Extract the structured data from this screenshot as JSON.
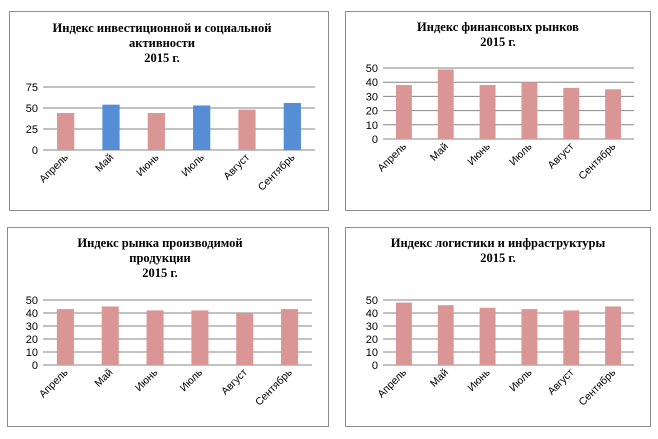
{
  "chart_data": [
    {
      "type": "bar",
      "title": [
        "Индекс инвестиционной и социальной",
        "активности",
        "2015 г."
      ],
      "categories": [
        "Апрель",
        "Май",
        "Июнь",
        "Июль",
        "Август",
        "Сентябрь"
      ],
      "values": [
        44,
        54,
        44,
        53,
        48,
        56
      ],
      "bar_colors": [
        "#d99694",
        "#558ed5",
        "#d99694",
        "#558ed5",
        "#d99694",
        "#558ed5"
      ],
      "yticks": [
        0,
        25,
        50,
        75
      ],
      "ylim": [
        0,
        75
      ],
      "grid": true,
      "legend": "none"
    },
    {
      "type": "bar",
      "title": [
        "Индекс финансовых рынков",
        "2015 г."
      ],
      "categories": [
        "Апрель",
        "Май",
        "Июнь",
        "Июль",
        "Август",
        "Сентябрь"
      ],
      "values": [
        38,
        49,
        38,
        40,
        36,
        35
      ],
      "bar_colors": [
        "#d99694",
        "#d99694",
        "#d99694",
        "#d99694",
        "#d99694",
        "#d99694"
      ],
      "yticks": [
        0,
        10,
        20,
        30,
        40,
        50
      ],
      "ylim": [
        0,
        50
      ],
      "grid": true,
      "legend": "none"
    },
    {
      "type": "bar",
      "title": [
        "Индекс рынка производимой",
        "продукции",
        "2015 г."
      ],
      "categories": [
        "Апрель",
        "Май",
        "Июнь",
        "Июль",
        "Август",
        "Сентябрь"
      ],
      "values": [
        43,
        45,
        42,
        42,
        40,
        43
      ],
      "bar_colors": [
        "#d99694",
        "#d99694",
        "#d99694",
        "#d99694",
        "#d99694",
        "#d99694"
      ],
      "yticks": [
        0,
        10,
        20,
        30,
        40,
        50
      ],
      "ylim": [
        0,
        50
      ],
      "grid": true,
      "legend": "none"
    },
    {
      "type": "bar",
      "title": [
        "Индекс логистики и инфраструктуры",
        "2015 г."
      ],
      "categories": [
        "Апрель",
        "Май",
        "Июнь",
        "Июль",
        "Август",
        "Сентябрь"
      ],
      "values": [
        48,
        46,
        44,
        43,
        42,
        45
      ],
      "bar_colors": [
        "#d99694",
        "#d99694",
        "#d99694",
        "#d99694",
        "#d99694",
        "#d99694"
      ],
      "yticks": [
        0,
        10,
        20,
        30,
        40,
        50
      ],
      "ylim": [
        0,
        50
      ],
      "grid": true,
      "legend": "none"
    }
  ]
}
